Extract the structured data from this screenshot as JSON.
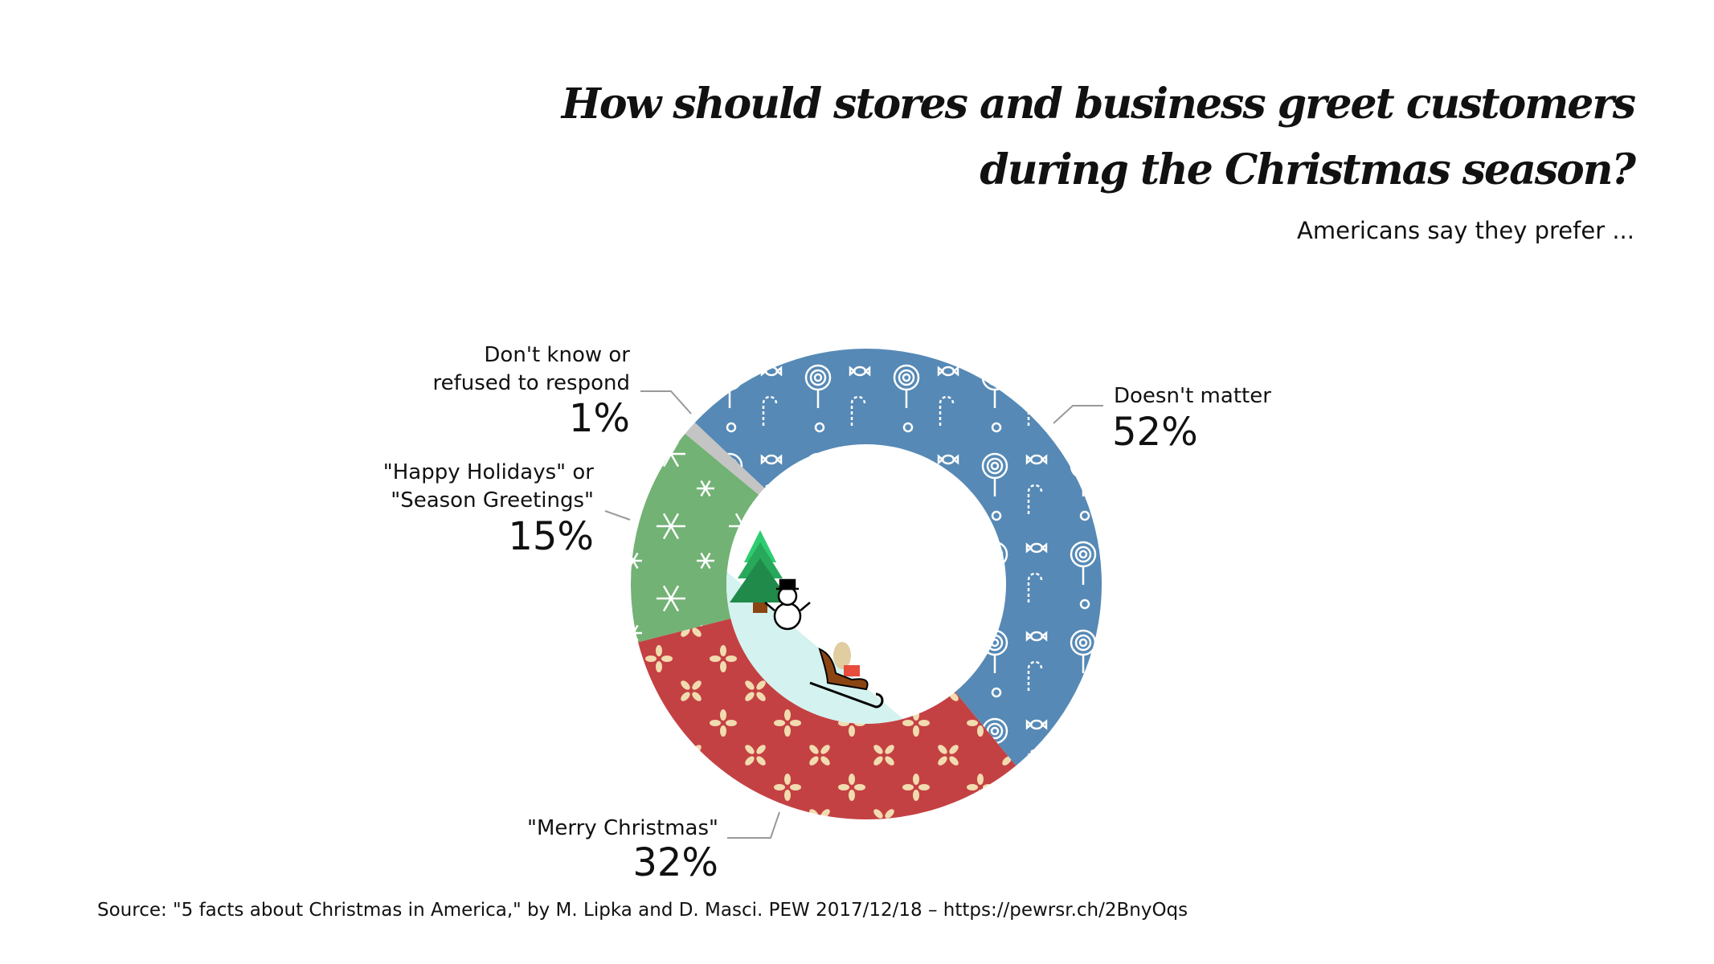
{
  "title_lines": [
    "How should stores and business greet customers",
    "during the Christmas season?"
  ],
  "subtitle": "Americans say they prefer ...",
  "source": "Source: \"5 facts about Christmas in America,\" by M. Lipka and D. Masci. PEW 2017/12/18 – https://pewrsr.ch/2BnyOqs",
  "chart_data": {
    "type": "pie",
    "variant": "donut",
    "title": "How should stores and business greet customers during the Christmas season?",
    "subtitle": "Americans say they prefer ...",
    "categories": [
      "Doesn't matter",
      "\"Merry Christmas\"",
      "\"Happy Holidays\" or \"Season Greetings\"",
      "Don't know or refused to respond"
    ],
    "values": [
      52,
      32,
      15,
      1
    ],
    "unit": "%",
    "value_labels": [
      "52%",
      "32%",
      "15%",
      "1%"
    ],
    "colors": [
      "#5689b5",
      "#c44143",
      "#72b275",
      "#c4c4c4"
    ],
    "patterns": [
      "candy-cane-and-lollipop",
      "flower",
      "snowflake",
      "none"
    ],
    "label_lines": {
      "doesnt_matter": [
        "Doesn't matter"
      ],
      "merry_christmas": [
        "\"Merry Christmas\""
      ],
      "happy_holidays": [
        "\"Happy Holidays\" or",
        "\"Season Greetings\""
      ],
      "dont_know": [
        "Don't know or",
        "refused to respond"
      ]
    },
    "center_illustration": [
      "tree-icon",
      "snowman-icon",
      "sleigh-icon"
    ]
  }
}
